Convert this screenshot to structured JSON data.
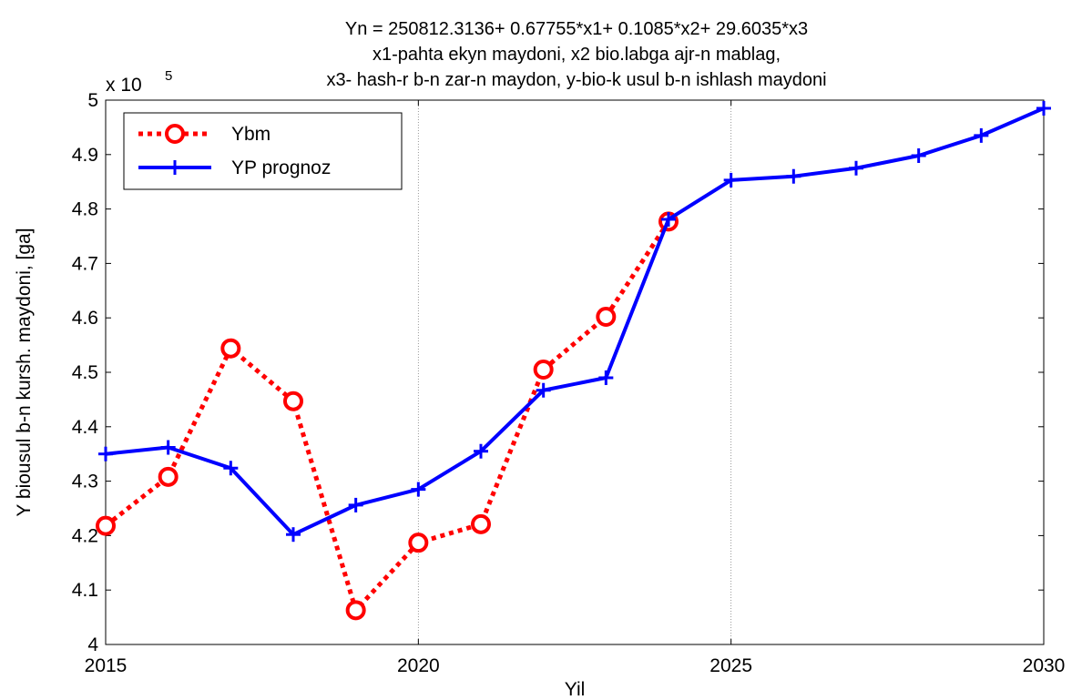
{
  "chart_data": {
    "type": "line",
    "title": [
      "Yn = 250812.3136+ 0.67755*x1+ 0.1085*x2+ 29.6035*x3",
      "x1-pahta ekyn maydoni, x2 bio.labga ajr-n mablag,",
      "x3- hash-r b-n zar-n maydon, y-bio-k usul b-n ishlash maydoni"
    ],
    "xlabel": "Yil",
    "ylabel": "Y biousul b-n kursh. maydoni, [ga]",
    "exponent_label": {
      "base": "x 10",
      "power": "5"
    },
    "xlim": [
      2015,
      2030
    ],
    "ylim": [
      4.0,
      5.0
    ],
    "x_ticks": [
      2015,
      2020,
      2025,
      2030
    ],
    "y_ticks": [
      4,
      4.1,
      4.2,
      4.3,
      4.4,
      4.5,
      4.6,
      4.7,
      4.8,
      4.9,
      5
    ],
    "y_tick_labels": [
      "4",
      "4.1",
      "4.2",
      "4.3",
      "4.4",
      "4.5",
      "4.6",
      "4.7",
      "4.8",
      "4.9",
      "5"
    ],
    "x_tick_labels": [
      "2015",
      "2020",
      "2025",
      "2030"
    ],
    "grid": true,
    "legend_position": "top-left",
    "series": [
      {
        "name": "Ybm",
        "color": "#ff0000",
        "style": "dotted",
        "marker": "circle",
        "x": [
          2015,
          2016,
          2017,
          2018,
          2019,
          2020,
          2021,
          2022,
          2023,
          2024
        ],
        "y": [
          4.218,
          4.308,
          4.544,
          4.447,
          4.063,
          4.187,
          4.221,
          4.505,
          4.602,
          4.777
        ]
      },
      {
        "name": "YP prognoz",
        "color": "#0000ff",
        "style": "solid",
        "marker": "plus",
        "x": [
          2015,
          2016,
          2017,
          2018,
          2019,
          2020,
          2021,
          2022,
          2023,
          2024,
          2025,
          2026,
          2027,
          2028,
          2029,
          2030
        ],
        "y": [
          4.35,
          4.362,
          4.324,
          4.202,
          4.256,
          4.285,
          4.355,
          4.467,
          4.49,
          4.781,
          4.853,
          4.86,
          4.875,
          4.898,
          4.935,
          4.985
        ]
      }
    ]
  }
}
